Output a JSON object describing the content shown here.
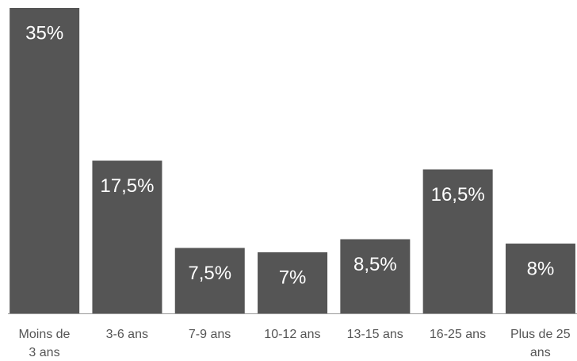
{
  "chart_data": {
    "type": "bar",
    "categories": [
      "Moins de 3 ans",
      "3-6 ans",
      "7-9 ans",
      "10-12 ans",
      "13-15 ans",
      "16-25 ans",
      "Plus de 25 ans"
    ],
    "values": [
      35,
      17.5,
      7.5,
      7,
      8.5,
      16.5,
      8
    ],
    "value_labels": [
      "35%",
      "17,5%",
      "7,5%",
      "7%",
      "8,5%",
      "16,5%",
      "8%"
    ],
    "color": "#555555"
  }
}
